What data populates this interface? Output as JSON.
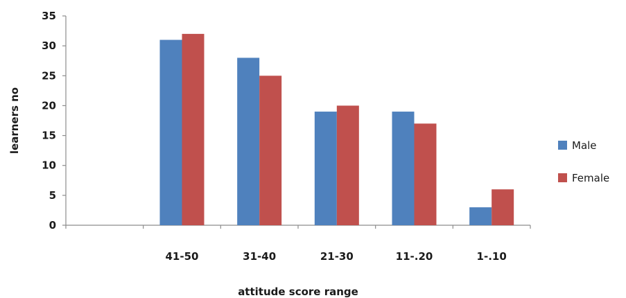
{
  "chart_data": {
    "type": "bar",
    "title": "",
    "xlabel": "attitude score range",
    "ylabel": "learners no",
    "categories": [
      "",
      "41-50",
      "31-40",
      "21-30",
      "11-.20",
      "1-.10"
    ],
    "series": [
      {
        "name": "Male",
        "color": "#4f81bd",
        "values": [
          null,
          31,
          28,
          19,
          19,
          3
        ]
      },
      {
        "name": "Female",
        "color": "#c0504d",
        "values": [
          null,
          32,
          25,
          20,
          17,
          6
        ]
      }
    ],
    "ylim": [
      0,
      35
    ],
    "yticks": [
      0,
      5,
      10,
      15,
      20,
      25,
      30,
      35
    ],
    "grid": false,
    "legend": "right"
  }
}
